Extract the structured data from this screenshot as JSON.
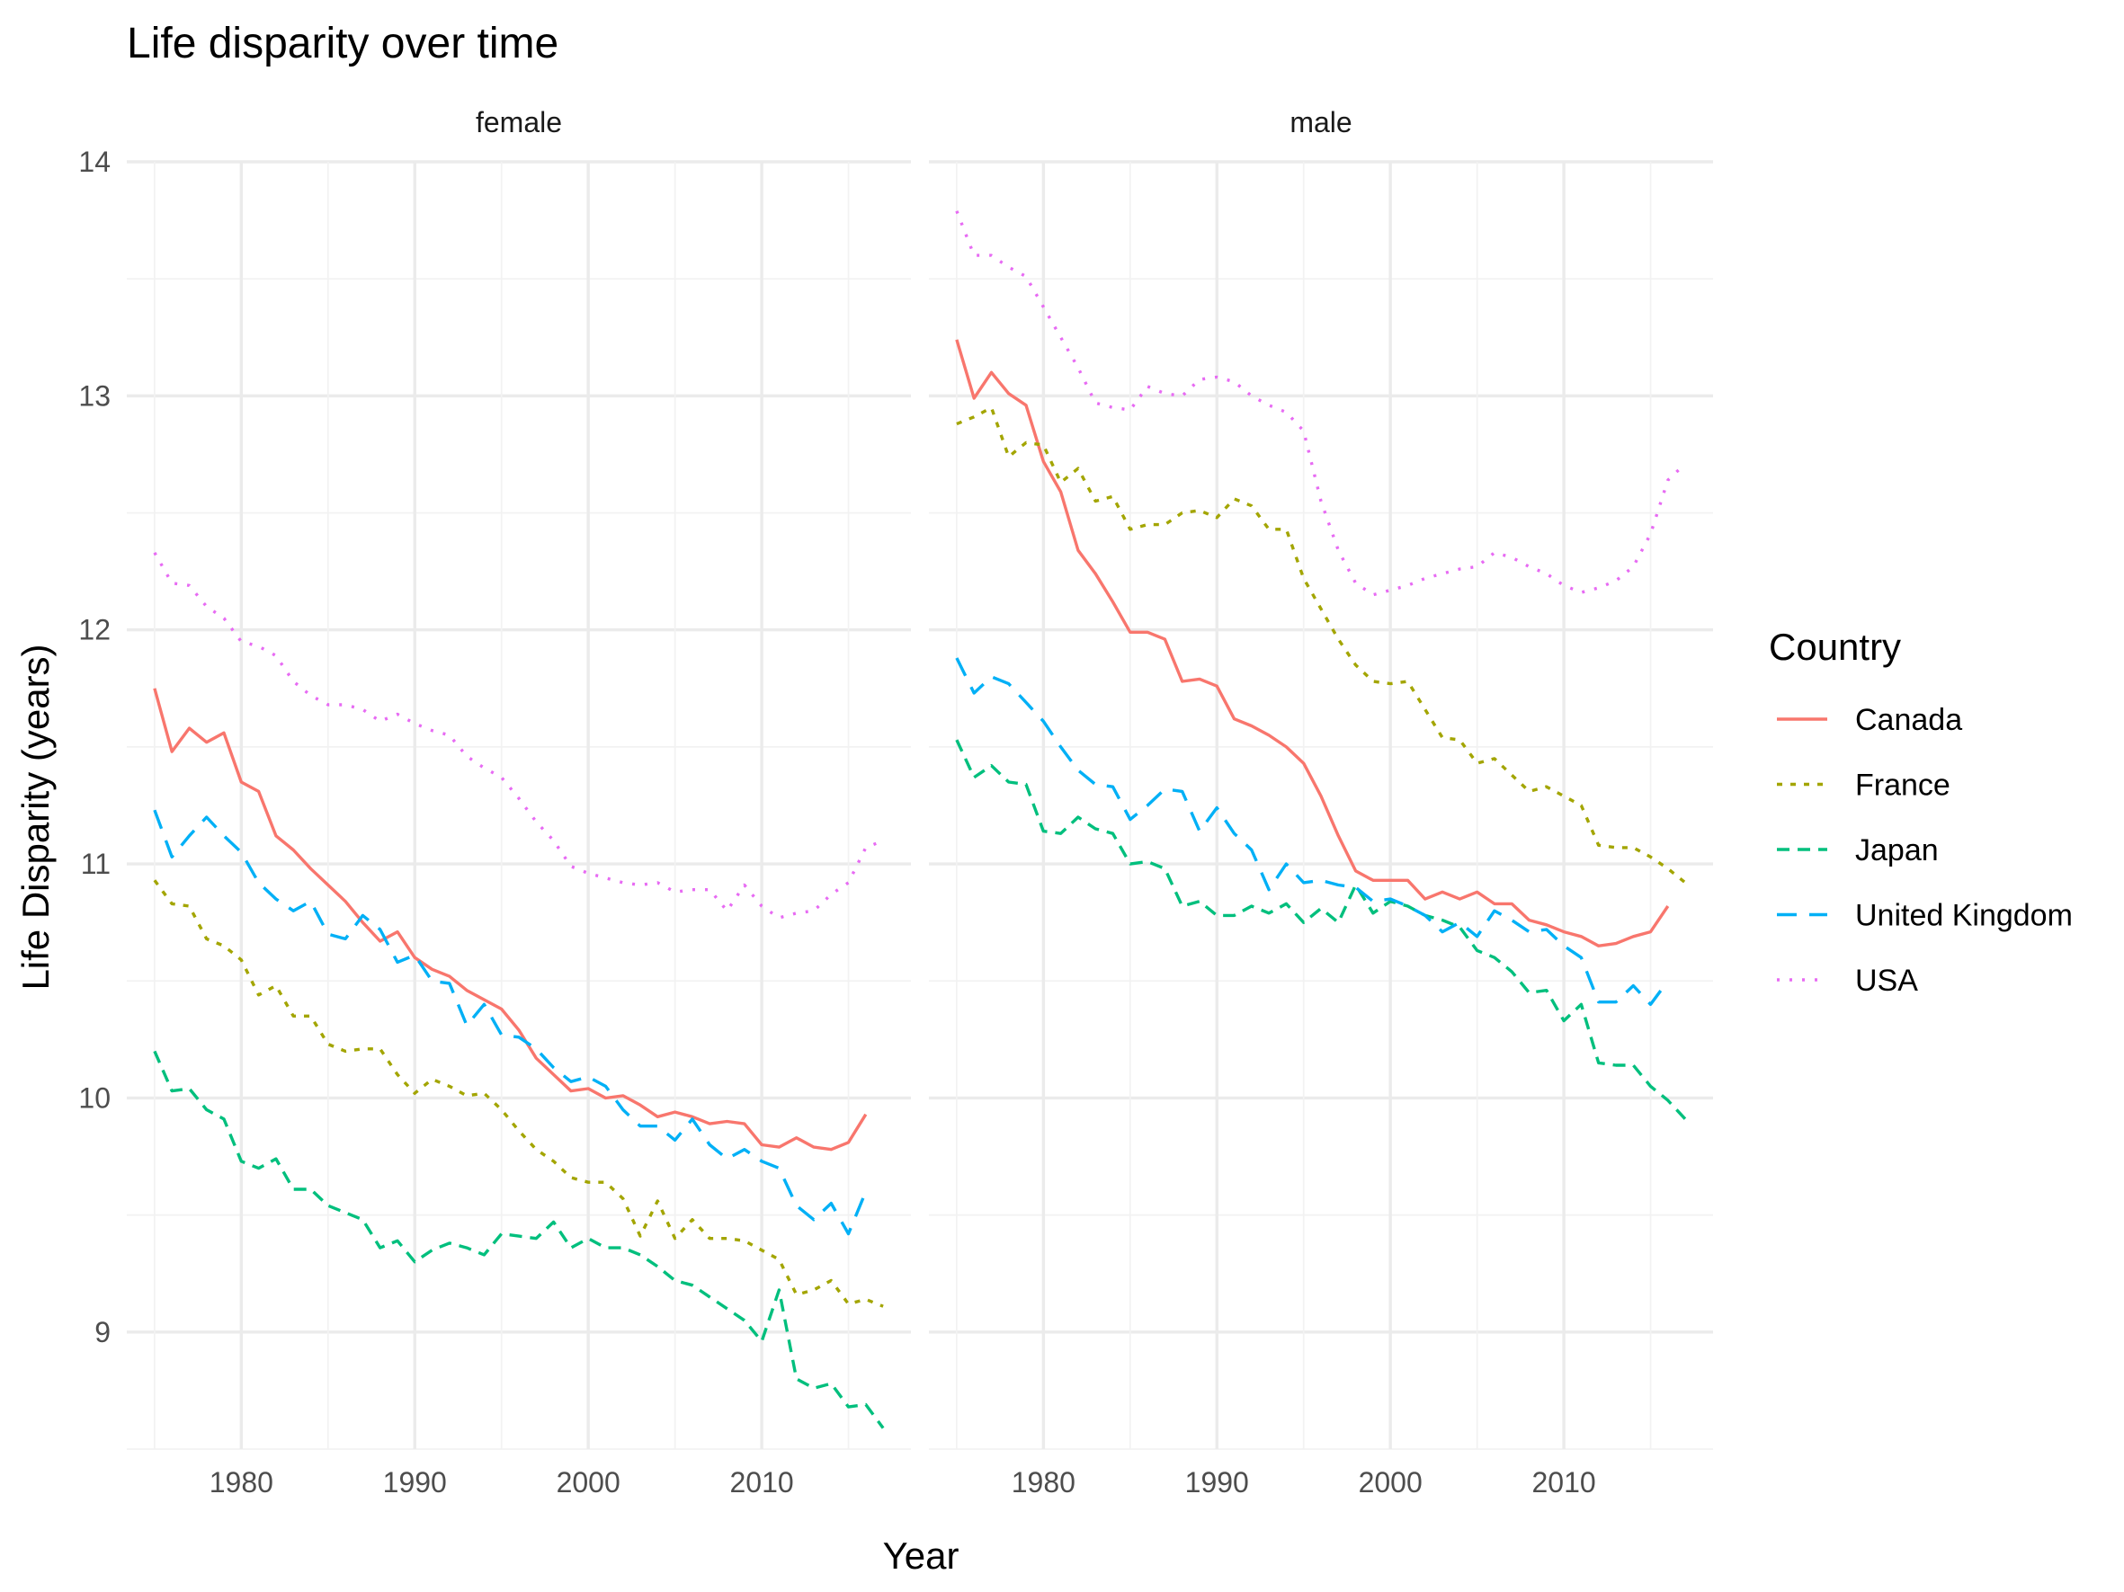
{
  "chart_data": {
    "type": "line",
    "title": "Life disparity over time",
    "xlabel": "Year",
    "ylabel": "Life Disparity (years)",
    "xlim": [
      1975,
      2017
    ],
    "ylim": [
      8.5,
      14
    ],
    "x_ticks": [
      1980,
      1990,
      2000,
      2010
    ],
    "y_ticks": [
      9,
      10,
      11,
      12,
      13,
      14
    ],
    "grid": true,
    "legend": {
      "title": "Country",
      "position": "right",
      "entries": [
        "Canada",
        "France",
        "Japan",
        "United Kingdom",
        "USA"
      ]
    },
    "colors": {
      "Canada": "#F8766D",
      "France": "#A3A500",
      "Japan": "#00BF7D",
      "United Kingdom": "#00B0F6",
      "USA": "#E76BF3"
    },
    "dash_styles": {
      "Canada": "solid",
      "France": "dotted-dashed",
      "Japan": "dashed",
      "United Kingdom": "long-dashed",
      "USA": "dotted"
    },
    "x": [
      1975,
      1976,
      1977,
      1978,
      1979,
      1980,
      1981,
      1982,
      1983,
      1984,
      1985,
      1986,
      1987,
      1988,
      1989,
      1990,
      1991,
      1992,
      1993,
      1994,
      1995,
      1996,
      1997,
      1998,
      1999,
      2000,
      2001,
      2002,
      2003,
      2004,
      2005,
      2006,
      2007,
      2008,
      2009,
      2010,
      2011,
      2012,
      2013,
      2014,
      2015,
      2016,
      2017
    ],
    "panels": [
      {
        "name": "female",
        "series": [
          {
            "name": "Canada",
            "values": [
              11.75,
              11.48,
              11.58,
              11.52,
              11.56,
              11.35,
              11.31,
              11.12,
              11.06,
              10.98,
              10.91,
              10.84,
              10.75,
              10.67,
              10.71,
              10.6,
              10.55,
              10.52,
              10.46,
              10.42,
              10.38,
              10.29,
              10.17,
              10.1,
              10.03,
              10.04,
              10.0,
              10.01,
              9.97,
              9.92,
              9.94,
              9.92,
              9.89,
              9.9,
              9.89,
              9.8,
              9.79,
              9.83,
              9.79,
              9.78,
              9.81,
              9.93,
              null
            ]
          },
          {
            "name": "France",
            "values": [
              10.93,
              10.83,
              10.82,
              10.68,
              10.65,
              10.59,
              10.44,
              10.48,
              10.35,
              10.35,
              10.23,
              10.2,
              10.21,
              10.21,
              10.1,
              10.02,
              10.08,
              10.05,
              10.01,
              10.02,
              9.95,
              9.86,
              9.78,
              9.73,
              9.66,
              9.64,
              9.64,
              9.57,
              9.41,
              9.56,
              9.4,
              9.48,
              9.4,
              9.4,
              9.39,
              9.35,
              9.31,
              9.16,
              9.18,
              9.22,
              9.12,
              9.14,
              9.11
            ]
          },
          {
            "name": "Japan",
            "values": [
              10.2,
              10.03,
              10.04,
              9.95,
              9.91,
              9.73,
              9.7,
              9.74,
              9.61,
              9.61,
              9.54,
              9.51,
              9.48,
              9.36,
              9.39,
              9.3,
              9.35,
              9.38,
              9.36,
              9.33,
              9.42,
              9.41,
              9.4,
              9.47,
              9.36,
              9.4,
              9.36,
              9.36,
              9.33,
              9.28,
              9.22,
              9.2,
              9.15,
              9.1,
              9.05,
              8.96,
              9.18,
              8.8,
              8.76,
              8.78,
              8.68,
              8.69,
              8.59
            ]
          },
          {
            "name": "United Kingdom",
            "values": [
              11.23,
              11.03,
              11.12,
              11.2,
              11.12,
              11.05,
              10.92,
              10.85,
              10.8,
              10.84,
              10.7,
              10.68,
              10.78,
              10.72,
              10.58,
              10.61,
              10.5,
              10.49,
              10.31,
              10.4,
              10.27,
              10.26,
              10.21,
              10.13,
              10.07,
              10.09,
              10.05,
              9.95,
              9.88,
              9.88,
              9.82,
              9.91,
              9.8,
              9.74,
              9.78,
              9.73,
              9.7,
              9.54,
              9.48,
              9.55,
              9.42,
              9.6,
              null
            ]
          },
          {
            "name": "USA",
            "values": [
              12.33,
              12.2,
              12.19,
              12.1,
              12.05,
              11.95,
              11.93,
              11.89,
              11.78,
              11.72,
              11.68,
              11.68,
              11.66,
              11.61,
              11.64,
              11.6,
              11.57,
              11.55,
              11.46,
              11.41,
              11.37,
              11.28,
              11.18,
              11.1,
              10.99,
              10.96,
              10.94,
              10.92,
              10.91,
              10.92,
              10.88,
              10.89,
              10.89,
              10.8,
              10.91,
              10.82,
              10.77,
              10.79,
              10.8,
              10.87,
              10.92,
              11.07,
              11.1
            ]
          }
        ]
      },
      {
        "name": "male",
        "series": [
          {
            "name": "Canada",
            "values": [
              13.24,
              12.99,
              13.1,
              13.01,
              12.96,
              12.72,
              12.59,
              12.34,
              12.24,
              12.12,
              11.99,
              11.99,
              11.96,
              11.78,
              11.79,
              11.76,
              11.62,
              11.59,
              11.55,
              11.5,
              11.43,
              11.29,
              11.12,
              10.97,
              10.93,
              10.93,
              10.93,
              10.85,
              10.88,
              10.85,
              10.88,
              10.83,
              10.83,
              10.76,
              10.74,
              10.71,
              10.69,
              10.65,
              10.66,
              10.69,
              10.71,
              10.82,
              null
            ]
          },
          {
            "name": "France",
            "values": [
              12.88,
              12.91,
              12.95,
              12.74,
              12.8,
              12.79,
              12.63,
              12.69,
              12.55,
              12.57,
              12.43,
              12.45,
              12.45,
              12.5,
              12.51,
              12.48,
              12.56,
              12.53,
              12.43,
              12.43,
              12.22,
              12.09,
              11.96,
              11.85,
              11.78,
              11.77,
              11.78,
              11.66,
              11.54,
              11.53,
              11.43,
              11.45,
              11.38,
              11.31,
              11.33,
              11.29,
              11.25,
              11.08,
              11.07,
              11.07,
              11.03,
              10.98,
              10.92
            ]
          },
          {
            "name": "Japan",
            "values": [
              11.53,
              11.37,
              11.42,
              11.35,
              11.34,
              11.14,
              11.13,
              11.2,
              11.15,
              11.13,
              11.0,
              11.01,
              10.98,
              10.82,
              10.84,
              10.78,
              10.78,
              10.82,
              10.79,
              10.83,
              10.75,
              10.81,
              10.75,
              10.91,
              10.79,
              10.84,
              10.82,
              10.78,
              10.76,
              10.73,
              10.63,
              10.6,
              10.54,
              10.45,
              10.46,
              10.33,
              10.4,
              10.15,
              10.14,
              10.14,
              10.05,
              9.99,
              9.91
            ]
          },
          {
            "name": "United Kingdom",
            "values": [
              11.88,
              11.73,
              11.8,
              11.77,
              11.69,
              11.61,
              11.5,
              11.4,
              11.34,
              11.33,
              11.19,
              11.25,
              11.32,
              11.31,
              11.14,
              11.24,
              11.13,
              11.06,
              10.89,
              11.0,
              10.92,
              10.93,
              10.91,
              10.9,
              10.84,
              10.85,
              10.82,
              10.78,
              10.71,
              10.75,
              10.69,
              10.8,
              10.76,
              10.71,
              10.72,
              10.65,
              10.6,
              10.41,
              10.41,
              10.48,
              10.4,
              10.5,
              null
            ]
          },
          {
            "name": "USA",
            "values": [
              13.79,
              13.6,
              13.6,
              13.55,
              13.51,
              13.38,
              13.25,
              13.12,
              12.97,
              12.95,
              12.94,
              13.04,
              13.01,
              13.0,
              13.07,
              13.08,
              13.06,
              13.0,
              12.96,
              12.93,
              12.85,
              12.55,
              12.34,
              12.2,
              12.15,
              12.17,
              12.19,
              12.22,
              12.24,
              12.26,
              12.27,
              12.33,
              12.31,
              12.27,
              12.24,
              12.19,
              12.16,
              12.18,
              12.21,
              12.27,
              12.41,
              12.64,
              12.71
            ]
          }
        ]
      }
    ]
  }
}
